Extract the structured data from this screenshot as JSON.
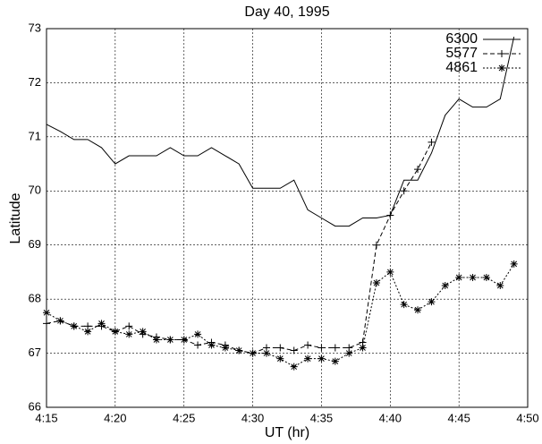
{
  "chart_data": {
    "type": "line",
    "title": "Day 40, 1995",
    "xlabel": "UT (hr)",
    "ylabel": "Latitude",
    "x": [
      4.25,
      4.2667,
      4.2833,
      4.3,
      4.3167,
      4.3333,
      4.35,
      4.3667,
      4.3833,
      4.4,
      4.4167,
      4.4333,
      4.45,
      4.4667,
      4.4833,
      4.5,
      4.5167,
      4.5333,
      4.55,
      4.5667,
      4.5833,
      4.6,
      4.6167,
      4.6333,
      4.65,
      4.6667,
      4.6833,
      4.7,
      4.7167,
      4.7333,
      4.75,
      4.7667,
      4.7833,
      4.8,
      4.8167
    ],
    "series": [
      {
        "name": "6300",
        "color": "#000000",
        "dash": "solid",
        "marker": "none",
        "values": [
          71.23,
          71.1,
          70.95,
          70.95,
          70.8,
          70.5,
          70.65,
          70.65,
          70.65,
          70.8,
          70.65,
          70.65,
          70.8,
          70.65,
          70.5,
          70.05,
          70.05,
          70.05,
          70.2,
          69.65,
          69.5,
          69.35,
          69.35,
          69.5,
          69.5,
          69.55,
          70.2,
          70.2,
          70.7,
          71.4,
          71.7,
          71.55,
          71.55,
          71.7,
          72.85
        ]
      },
      {
        "name": "5577",
        "color": "#000000",
        "dash": "dashed",
        "marker": "plus",
        "values": [
          67.55,
          67.6,
          67.5,
          67.5,
          67.5,
          67.4,
          67.5,
          67.35,
          67.3,
          67.25,
          67.25,
          67.15,
          67.2,
          67.15,
          67.05,
          67.0,
          67.1,
          67.1,
          67.05,
          67.15,
          67.1,
          67.1,
          67.1,
          67.2,
          69.0,
          69.55,
          70.0,
          70.4,
          70.9,
          null,
          null,
          null,
          null,
          null,
          null
        ]
      },
      {
        "name": "4861",
        "color": "#000000",
        "dash": "dotted",
        "marker": "star",
        "values": [
          67.75,
          67.6,
          67.5,
          67.4,
          67.55,
          67.4,
          67.35,
          67.4,
          67.25,
          67.25,
          67.25,
          67.35,
          67.15,
          67.1,
          67.05,
          67.0,
          67.0,
          66.9,
          66.75,
          66.9,
          66.9,
          66.85,
          67.0,
          67.1,
          68.3,
          68.5,
          67.9,
          67.8,
          67.95,
          68.25,
          68.4,
          68.4,
          68.4,
          68.25,
          68.65
        ]
      }
    ],
    "xlim": [
      4.25,
      4.8333
    ],
    "xticks": [
      {
        "value": 4.25,
        "label": "4:15"
      },
      {
        "value": 4.3333,
        "label": "4:20"
      },
      {
        "value": 4.4167,
        "label": "4:25"
      },
      {
        "value": 4.5,
        "label": "4:30"
      },
      {
        "value": 4.5833,
        "label": "4:35"
      },
      {
        "value": 4.6667,
        "label": "4:40"
      },
      {
        "value": 4.75,
        "label": "4:45"
      },
      {
        "value": 4.8333,
        "label": "4:50"
      }
    ],
    "ylim": [
      66,
      73
    ],
    "yticks": [
      66,
      67,
      68,
      69,
      70,
      71,
      72,
      73
    ],
    "grid": true,
    "legend": "top-right"
  }
}
